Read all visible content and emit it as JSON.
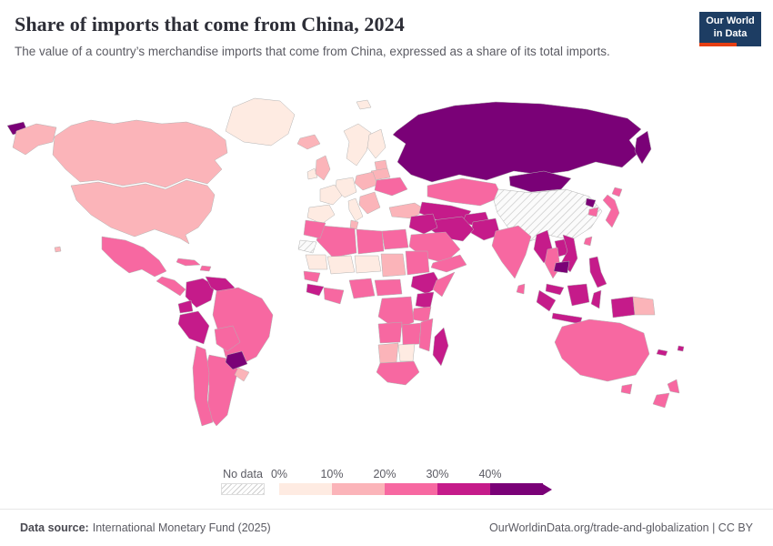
{
  "header": {
    "title": "Share of imports that come from China, 2024",
    "subtitle": "The value of a country’s merchandise imports that come from China, expressed as a share of its total imports."
  },
  "logo": {
    "line1": "Our World",
    "line2": "in Data",
    "bg": "#1d3d63",
    "accent": "#e63e13"
  },
  "footer": {
    "source_label": "Data source:",
    "source": "International Monetary Fund (2025)",
    "right": "OurWorldinData.org/trade-and-globalization | CC BY"
  },
  "chart_data": {
    "type": "heatmap",
    "subtype": "choropleth-world-map",
    "title": "Share of imports that come from China, 2024",
    "unit": "%",
    "year": 2024,
    "legend": {
      "no_data_label": "No data",
      "tick_labels": [
        "0%",
        "10%",
        "20%",
        "30%",
        "40%"
      ],
      "thresholds": [
        10,
        20,
        30,
        40
      ],
      "colors": [
        "#feebe2",
        "#fbb4b9",
        "#f768a1",
        "#c51b8a",
        "#7a0177"
      ],
      "arrow_end": true
    },
    "regions": {
      "greenland": 4,
      "canada": 13,
      "usa": 14,
      "mexico": 20,
      "central-america": 24,
      "cuba": 24,
      "hispaniola": 22,
      "colombia": 31,
      "venezuela": 32,
      "guyanas": 21,
      "ecuador": 31,
      "peru": 31,
      "brazil": 24,
      "bolivia": 21,
      "paraguay": 42,
      "chile": 24,
      "argentina": 21,
      "uruguay": 18,
      "iceland": 11,
      "uk": 11,
      "ireland": 5,
      "scandinavia": 6,
      "finland": 6,
      "svalbard": 5,
      "baltics": 12,
      "france": 7,
      "iberia": 8,
      "germany-central": 8,
      "italy": 9,
      "poland": 12,
      "balkans": 13,
      "ukraine": 25,
      "belarus": 14,
      "turkey": 13,
      "russia": 52,
      "kazakhstan": 28,
      "central-asia": 34,
      "mongolia": 44,
      "china": null,
      "north-korea": 55,
      "south-korea": 21,
      "japan": 22,
      "taiwan": 21,
      "india": 22,
      "sri-lanka": 25,
      "pakistan": 32,
      "afghanistan": 31,
      "iran": 31,
      "iraq-syria": 31,
      "arabia": 23,
      "yemen-oman": 26,
      "egypt": 26,
      "libya": 24,
      "tunisia": 15,
      "algeria": 22,
      "morocco": 23,
      "western-sahara": null,
      "mauritania": 8,
      "mali": 9,
      "niger": 9,
      "chad": 12,
      "sudan": 22,
      "senegal": 22,
      "guinea": 35,
      "ivory-ghana": 25,
      "nigeria": 27,
      "cameroon": 25,
      "ethiopia": 33,
      "somalia": 22,
      "kenya": 33,
      "tanzania": 28,
      "drc": 27,
      "angola": 24,
      "zambia-zimbabwe": 26,
      "mozambique": 24,
      "namibia": 12,
      "botswana": 9,
      "south-africa": 21,
      "madagascar": 33,
      "myanmar": 34,
      "thailand": 26,
      "laos": 33,
      "vietnam": 38,
      "cambodia": 45,
      "malaysia": 31,
      "indonesia": 31,
      "philippines": 31,
      "papua-new-guinea": 12,
      "australia": 27,
      "new-zealand": 23,
      "new-caledonia": 35,
      "fiji": 35
    }
  }
}
